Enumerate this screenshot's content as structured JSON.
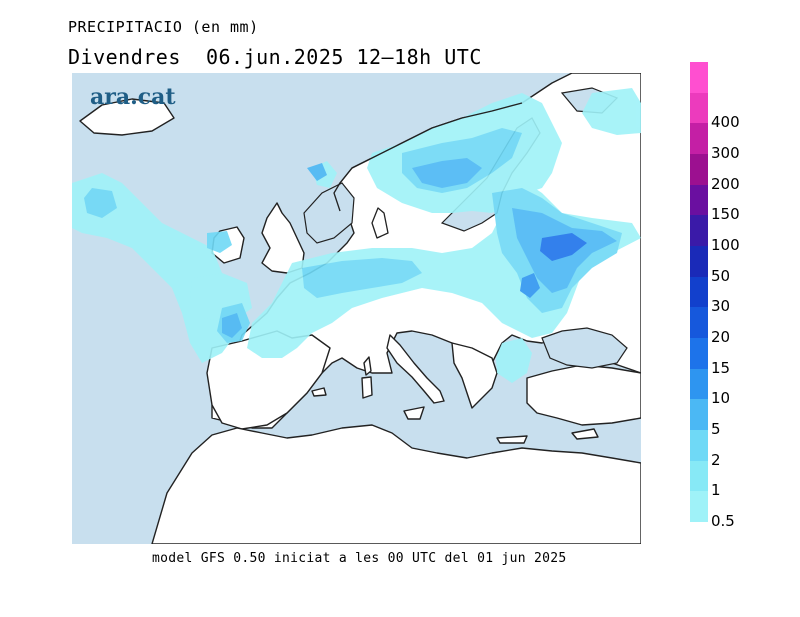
{
  "header": {
    "variable": "PRECIPITACIO (en mm)",
    "date_line": "Divendres  06.jun.2025 12–18h UTC"
  },
  "brand": "ara.cat",
  "footer": "model GFS 0.50 iniciat a les 00 UTC del 01 jun 2025",
  "colors": {
    "sea": "#c8dfee",
    "land": "#ffffff",
    "coast": "#222222"
  },
  "legend": {
    "levels": [
      {
        "label": "0.5",
        "color": "#9ff2f8"
      },
      {
        "label": "1",
        "color": "#87e9f6"
      },
      {
        "label": "2",
        "color": "#6fd9f6"
      },
      {
        "label": "5",
        "color": "#4bb8f4"
      },
      {
        "label": "10",
        "color": "#2e95f0"
      },
      {
        "label": "15",
        "color": "#1d73ea"
      },
      {
        "label": "20",
        "color": "#1658dc"
      },
      {
        "label": "30",
        "color": "#1240cc"
      },
      {
        "label": "50",
        "color": "#1a2ab8"
      },
      {
        "label": "100",
        "color": "#3a1aa8"
      },
      {
        "label": "150",
        "color": "#6a0fa0"
      },
      {
        "label": "200",
        "color": "#9c1090"
      },
      {
        "label": "300",
        "color": "#c41fa5"
      },
      {
        "label": "400",
        "color": "#ec3bbd"
      }
    ],
    "top_color": "#ff4fd0"
  }
}
